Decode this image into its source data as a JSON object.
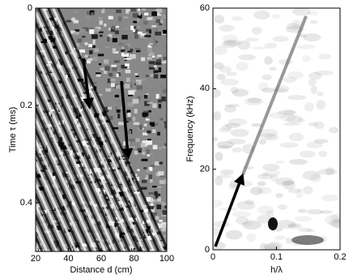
{
  "chart_data": [
    {
      "type": "image",
      "xlabel": "Distance d (cm)",
      "ylabel": "Time τ (ms)",
      "xlim": [
        20,
        100
      ],
      "xticks": [
        20,
        40,
        60,
        80,
        100
      ],
      "ylim": [
        0,
        0.5
      ],
      "yticks": [
        0,
        0.2,
        0.4
      ],
      "y_reversed": true
    },
    {
      "type": "image",
      "xlabel": "h/λ",
      "ylabel": "Frequency (kHz)",
      "xlim": [
        0,
        0.2
      ],
      "xticks": [
        0,
        0.1,
        0.2
      ],
      "ylim": [
        0,
        60
      ],
      "yticks": [
        0,
        20,
        40,
        60
      ],
      "y_reversed": false
    }
  ]
}
